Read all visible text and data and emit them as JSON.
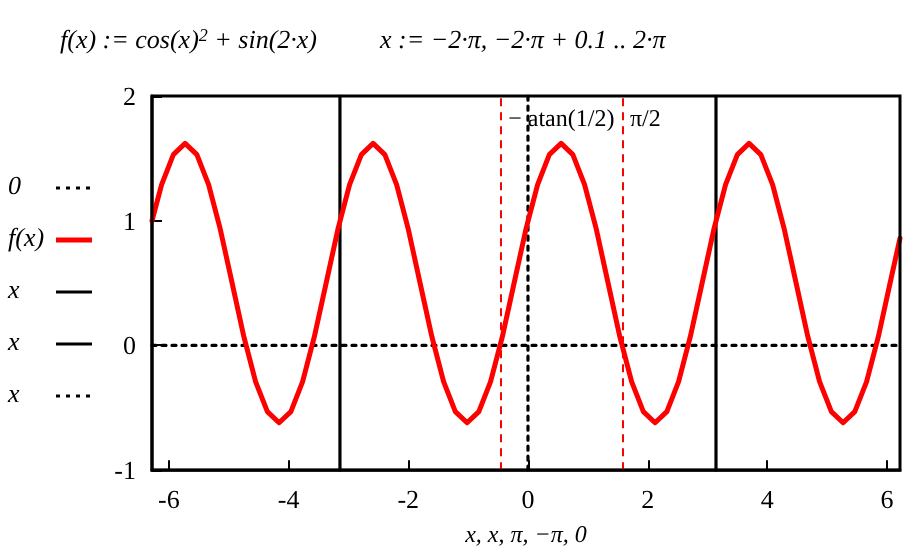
{
  "chart_data": {
    "type": "line",
    "title": "f(x) := cos(x)$^{2}$ + sin(2·x)",
    "subtitle": "x := −2·π, −2·π + 0.1 .. 2·π",
    "xlabel": "x, x, π, −π, 0",
    "xlim": [
      -6.283,
      6.217
    ],
    "xticks": [
      -6,
      -4,
      -2,
      0,
      2,
      4,
      6
    ],
    "ylim": [
      -1,
      2
    ],
    "yticks": [
      -1,
      0,
      1,
      2
    ],
    "grid": false,
    "legend": "left",
    "marker": "none",
    "series": [
      {
        "name": "0",
        "color": "#000000",
        "line_style": "dotted",
        "x": [
          -6.283,
          6.217
        ],
        "values": [
          0,
          0
        ]
      },
      {
        "name": "f(x)",
        "color": "#ff0000",
        "line_style": "solid",
        "x": [
          -6.283,
          -6.122,
          -5.926,
          -5.73,
          -5.533,
          -5.337,
          -5.141,
          -4.944,
          -4.748,
          -4.552,
          -4.355,
          -4.159,
          -3.962,
          -3.766,
          -3.57,
          -3.373,
          -3.177,
          -2.981,
          -2.784,
          -2.588,
          -2.392,
          -2.195,
          -1.999,
          -1.803,
          -1.606,
          -1.41,
          -1.214,
          -1.017,
          -0.821,
          -0.625,
          -0.428,
          -0.232,
          -0.035,
          0.161,
          0.357,
          0.554,
          0.75,
          0.946,
          1.143,
          1.339,
          1.535,
          1.732,
          1.928,
          2.124,
          2.321,
          2.517,
          2.713,
          2.91,
          3.106,
          3.302,
          3.499,
          3.695,
          3.891,
          4.088,
          4.284,
          4.481,
          4.677,
          4.873,
          5.07,
          5.266,
          5.462,
          5.659,
          5.855,
          6.051,
          6.217
        ],
        "values": [
          1.0,
          1.29,
          1.53,
          1.62,
          1.53,
          1.29,
          0.93,
          0.5,
          0.07,
          -0.29,
          -0.53,
          -0.62,
          -0.53,
          -0.29,
          0.07,
          0.5,
          0.93,
          1.29,
          1.53,
          1.62,
          1.53,
          1.29,
          0.93,
          0.5,
          0.07,
          -0.29,
          -0.53,
          -0.62,
          -0.53,
          -0.29,
          0.07,
          0.5,
          0.93,
          1.29,
          1.53,
          1.62,
          1.53,
          1.29,
          0.93,
          0.5,
          0.07,
          -0.29,
          -0.53,
          -0.62,
          -0.53,
          -0.29,
          0.07,
          0.5,
          0.93,
          1.29,
          1.53,
          1.62,
          1.53,
          1.29,
          0.93,
          0.5,
          0.07,
          -0.29,
          -0.53,
          -0.62,
          -0.53,
          -0.29,
          0.07,
          0.5,
          0.86
        ]
      },
      {
        "name": "x",
        "color": "#000000",
        "line_style": "solid",
        "x": [
          3.142,
          3.142
        ],
        "values": [
          -1,
          2
        ]
      },
      {
        "name": "x",
        "color": "#000000",
        "line_style": "solid",
        "x": [
          -3.142,
          -3.142
        ],
        "values": [
          -1,
          2
        ]
      },
      {
        "name": "x",
        "color": "#000000",
        "line_style": "dotted",
        "x": [
          0,
          0
        ],
        "values": [
          -1,
          2
        ]
      }
    ],
    "ref_lines": [
      {
        "axis": "x",
        "value": -0.464,
        "label": "− atan(1/2)",
        "color": "#ff0000",
        "line_style": "dashed"
      },
      {
        "axis": "x",
        "value": 1.571,
        "label": "π/2",
        "color": "#ff0000",
        "line_style": "dashed"
      }
    ]
  }
}
